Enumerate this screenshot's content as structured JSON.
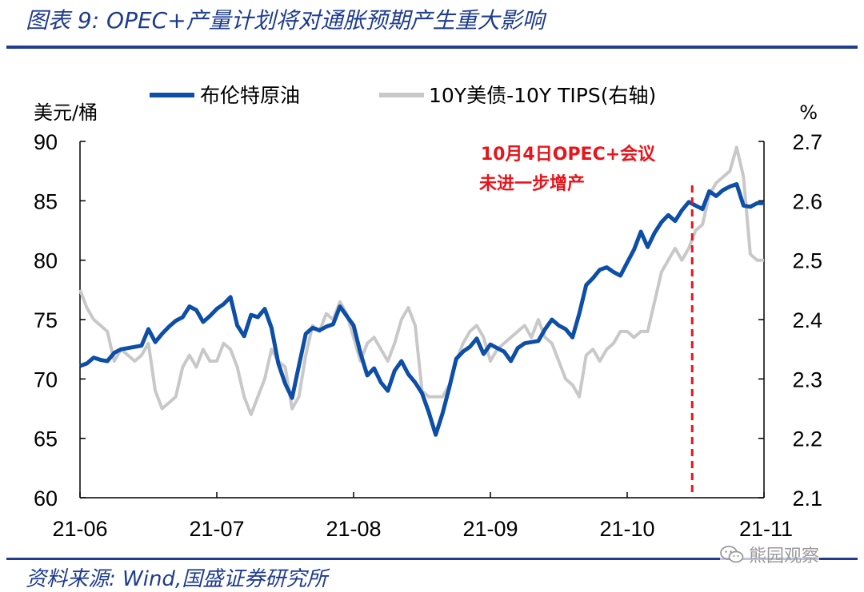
{
  "header": {
    "title": "图表 9:  OPEC+产量计划将对通胀预期产生重大影响"
  },
  "footer": {
    "source": "资料来源:  Wind,国盛证券研究所"
  },
  "watermark": {
    "text": "熊园观察",
    "icon": "wechat-icon"
  },
  "colors": {
    "brent": "#0d4ea6",
    "breakeven": "#c8c8c8",
    "annotation": "#e8141b",
    "rule": "#1f3c8f"
  },
  "chart_data": {
    "type": "line",
    "left_unit": "美元/桶",
    "right_unit": "%",
    "legend_position": "top",
    "grid": false,
    "x_ticks": [
      "21-06",
      "21-07",
      "21-08",
      "21-09",
      "21-10",
      "21-11"
    ],
    "y_left_ticks": [
      "90",
      "85",
      "80",
      "75",
      "70",
      "65",
      "60"
    ],
    "y_right_ticks": [
      "2.7",
      "2.6",
      "2.5",
      "2.4",
      "2.3",
      "2.2",
      "2.1"
    ],
    "ylim_left": [
      60,
      90
    ],
    "ylim_right": [
      2.1,
      2.7
    ],
    "annotation": {
      "line1": "10月4日OPEC+会议",
      "line2": "未进一步增产",
      "x": 89.5
    },
    "series": [
      {
        "name": "布伦特原油",
        "axis": "left",
        "x": [
          0,
          1,
          2,
          3,
          4,
          5,
          6,
          7,
          8,
          9,
          10,
          11,
          12,
          13,
          14,
          15,
          16,
          17,
          18,
          19,
          20,
          21,
          22,
          23,
          24,
          25,
          26,
          27,
          28,
          29,
          30,
          31,
          32,
          33,
          34,
          35,
          36,
          37,
          38,
          39,
          40,
          41,
          42,
          43,
          44,
          45,
          46,
          47,
          48,
          49,
          50,
          51,
          52,
          53,
          54,
          55,
          56,
          57,
          58,
          59,
          60,
          61,
          62,
          63,
          64,
          65,
          66,
          67,
          68,
          69,
          70,
          71,
          72,
          73,
          74,
          75,
          76,
          77,
          78,
          79,
          80,
          81,
          82,
          83,
          84,
          85,
          86,
          87,
          88,
          89,
          90,
          91,
          92,
          93,
          94,
          95,
          96,
          97,
          98,
          99,
          100
        ],
        "values": [
          71.1,
          71.3,
          71.8,
          71.6,
          71.5,
          72.2,
          72.5,
          72.6,
          72.7,
          72.8,
          74.2,
          73.1,
          73.8,
          74.4,
          74.9,
          75.2,
          76.1,
          75.8,
          74.8,
          75.3,
          75.9,
          76.3,
          76.9,
          74.5,
          73.6,
          75.4,
          75.2,
          75.9,
          74.3,
          71.3,
          69.6,
          68.4,
          71.1,
          73.8,
          74.3,
          74.1,
          74.4,
          74.6,
          76.1,
          75.3,
          74.5,
          72.2,
          70.3,
          70.9,
          69.7,
          69.0,
          70.7,
          71.5,
          70.4,
          69.7,
          68.8,
          67.2,
          65.3,
          67.1,
          69.3,
          71.7,
          72.3,
          72.7,
          73.4,
          72.1,
          72.9,
          72.6,
          72.3,
          71.5,
          72.6,
          73.0,
          73.1,
          73.2,
          74.2,
          75.0,
          74.5,
          74.2,
          73.5,
          75.5,
          77.9,
          78.5,
          79.2,
          79.4,
          79.0,
          78.7,
          79.8,
          80.9,
          82.4,
          81.1,
          82.3,
          83.2,
          83.8,
          83.3,
          84.2,
          84.9,
          84.6,
          84.3,
          85.8,
          85.4,
          85.9,
          86.2,
          86.4,
          84.6,
          84.5,
          84.8,
          84.8
        ]
      },
      {
        "name": "10Y美债-10Y TIPS(右轴)",
        "axis": "right",
        "x": [
          0,
          1,
          2,
          3,
          4,
          5,
          6,
          7,
          8,
          9,
          10,
          11,
          12,
          13,
          14,
          15,
          16,
          17,
          18,
          19,
          20,
          21,
          22,
          23,
          24,
          25,
          26,
          27,
          28,
          29,
          30,
          31,
          32,
          33,
          34,
          35,
          36,
          37,
          38,
          39,
          40,
          41,
          42,
          43,
          44,
          45,
          46,
          47,
          48,
          49,
          50,
          51,
          52,
          53,
          54,
          55,
          56,
          57,
          58,
          59,
          60,
          61,
          62,
          63,
          64,
          65,
          66,
          67,
          68,
          69,
          70,
          71,
          72,
          73,
          74,
          75,
          76,
          77,
          78,
          79,
          80,
          81,
          82,
          83,
          84,
          85,
          86,
          87,
          88,
          89,
          90,
          91,
          92,
          93,
          94,
          95,
          96,
          97,
          98,
          99,
          100
        ],
        "values": [
          2.45,
          2.42,
          2.4,
          2.39,
          2.38,
          2.33,
          2.35,
          2.34,
          2.33,
          2.34,
          2.36,
          2.28,
          2.25,
          2.26,
          2.27,
          2.32,
          2.34,
          2.32,
          2.35,
          2.33,
          2.33,
          2.36,
          2.35,
          2.32,
          2.27,
          2.24,
          2.27,
          2.3,
          2.35,
          2.33,
          2.32,
          2.25,
          2.27,
          2.34,
          2.39,
          2.38,
          2.41,
          2.4,
          2.43,
          2.41,
          2.37,
          2.33,
          2.36,
          2.37,
          2.35,
          2.33,
          2.36,
          2.4,
          2.42,
          2.39,
          2.28,
          2.27,
          2.27,
          2.27,
          2.29,
          2.33,
          2.36,
          2.38,
          2.39,
          2.37,
          2.33,
          2.35,
          2.36,
          2.37,
          2.38,
          2.39,
          2.37,
          2.4,
          2.37,
          2.36,
          2.33,
          2.3,
          2.29,
          2.27,
          2.34,
          2.35,
          2.33,
          2.35,
          2.36,
          2.38,
          2.38,
          2.37,
          2.38,
          2.38,
          2.43,
          2.48,
          2.5,
          2.52,
          2.5,
          2.52,
          2.55,
          2.56,
          2.61,
          2.63,
          2.64,
          2.65,
          2.69,
          2.64,
          2.51,
          2.5,
          2.5
        ]
      }
    ]
  }
}
